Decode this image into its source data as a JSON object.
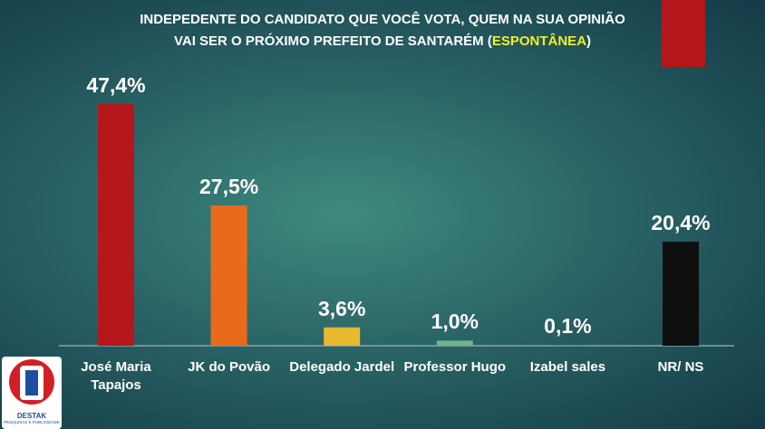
{
  "chart_data": {
    "type": "bar",
    "title_lines": [
      "INDEPEDENTE DO CANDIDATO QUE VOCÊ VOTA, QUEM NA SUA OPINIÃO",
      "VAI SER O PRÓXIMO PREFEITO DE SANTARÉM ("
    ],
    "title_highlight": "ESPONTÂNEA",
    "title_end": ")",
    "categories": [
      "José Maria Tapajos",
      "JK do Povão",
      "Delegado Jardel",
      "Professor Hugo",
      "Izabel sales",
      "NR/ NS"
    ],
    "values": [
      47.4,
      27.5,
      3.6,
      1.0,
      0.1,
      20.4
    ],
    "value_labels": [
      "47,4%",
      "27,5%",
      "3,6%",
      "1,0%",
      "0,1%",
      "20,4%"
    ],
    "colors": [
      "#b3171b",
      "#ea6a1c",
      "#e8b92e",
      "#6fb38f",
      "#4f9a80",
      "#0f0f0f"
    ]
  },
  "logo": {
    "name": "DESTAK",
    "tagline": "PESQUISAS E PUBLICIDADE"
  }
}
